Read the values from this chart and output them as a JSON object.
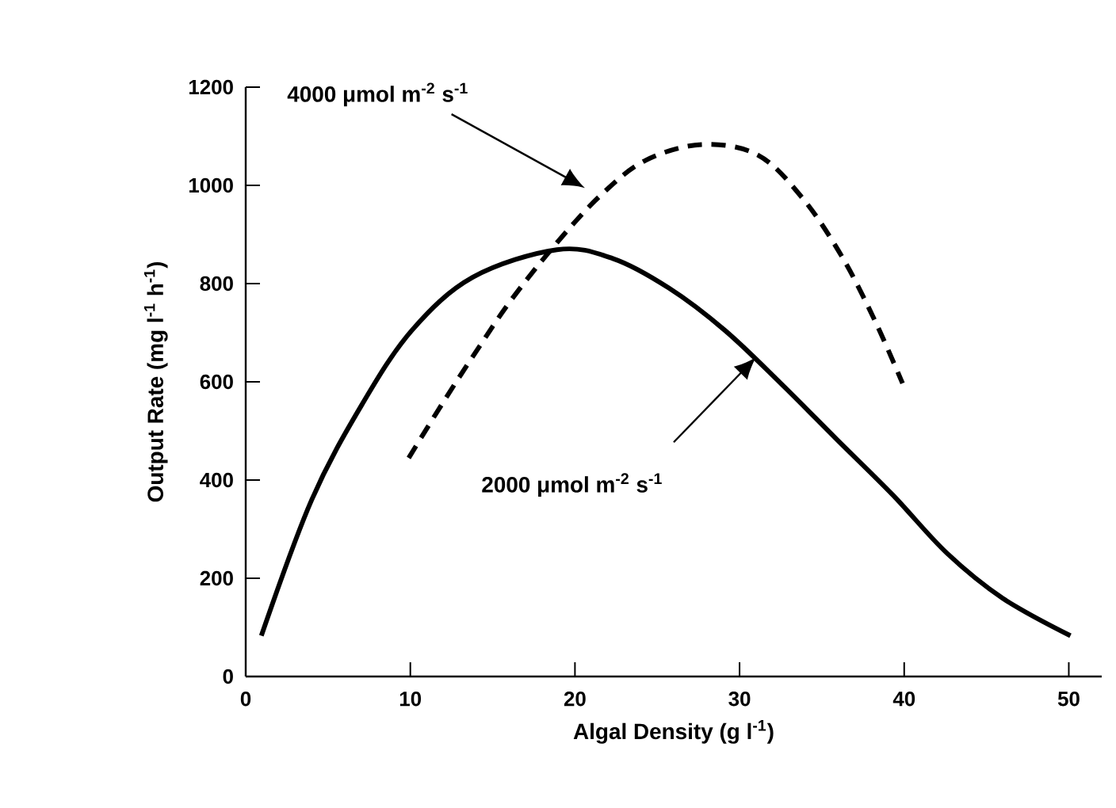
{
  "chart_data": {
    "type": "line",
    "xlabel": "Algal Density (g l$^{-1}$)",
    "ylabel": "Output Rate (mg l$^{-1}$ h$^{-1}$)",
    "xlim": [
      0,
      52
    ],
    "ylim": [
      0,
      1200
    ],
    "xticks": [
      0,
      10,
      20,
      30,
      40,
      50
    ],
    "yticks": [
      0,
      200,
      400,
      600,
      800,
      1000,
      1200
    ],
    "grid": false,
    "marker": "none",
    "series": [
      {
        "color": "#000000",
        "line_style": "solid",
        "x": [
          0.95,
          4,
          7.05,
          10.1,
          13.8,
          18.9,
          22.3,
          25.7,
          29.1,
          32.5,
          35.9,
          39.3,
          42.6,
          46,
          50.1
        ],
        "values": [
          83,
          359,
          553,
          705,
          813,
          869,
          851,
          791,
          705,
          597,
          483,
          370,
          251,
          159,
          83
        ]
      },
      {
        "color": "#000000",
        "line_style": "dashed",
        "x": [
          9.9,
          12.1,
          14.2,
          16.2,
          18.9,
          21.6,
          24.3,
          27.7,
          31.1,
          33.8,
          36.2,
          38.2,
          39.9
        ],
        "values": [
          445,
          564,
          672,
          770,
          883,
          981,
          1051,
          1083,
          1062,
          975,
          856,
          726,
          597
        ]
      }
    ],
    "annotations": [
      "4000 μmol m$^{-2}$ s$^{-1}$",
      "2000 μmol m$^{-2}$ s$^{-1}$"
    ]
  }
}
